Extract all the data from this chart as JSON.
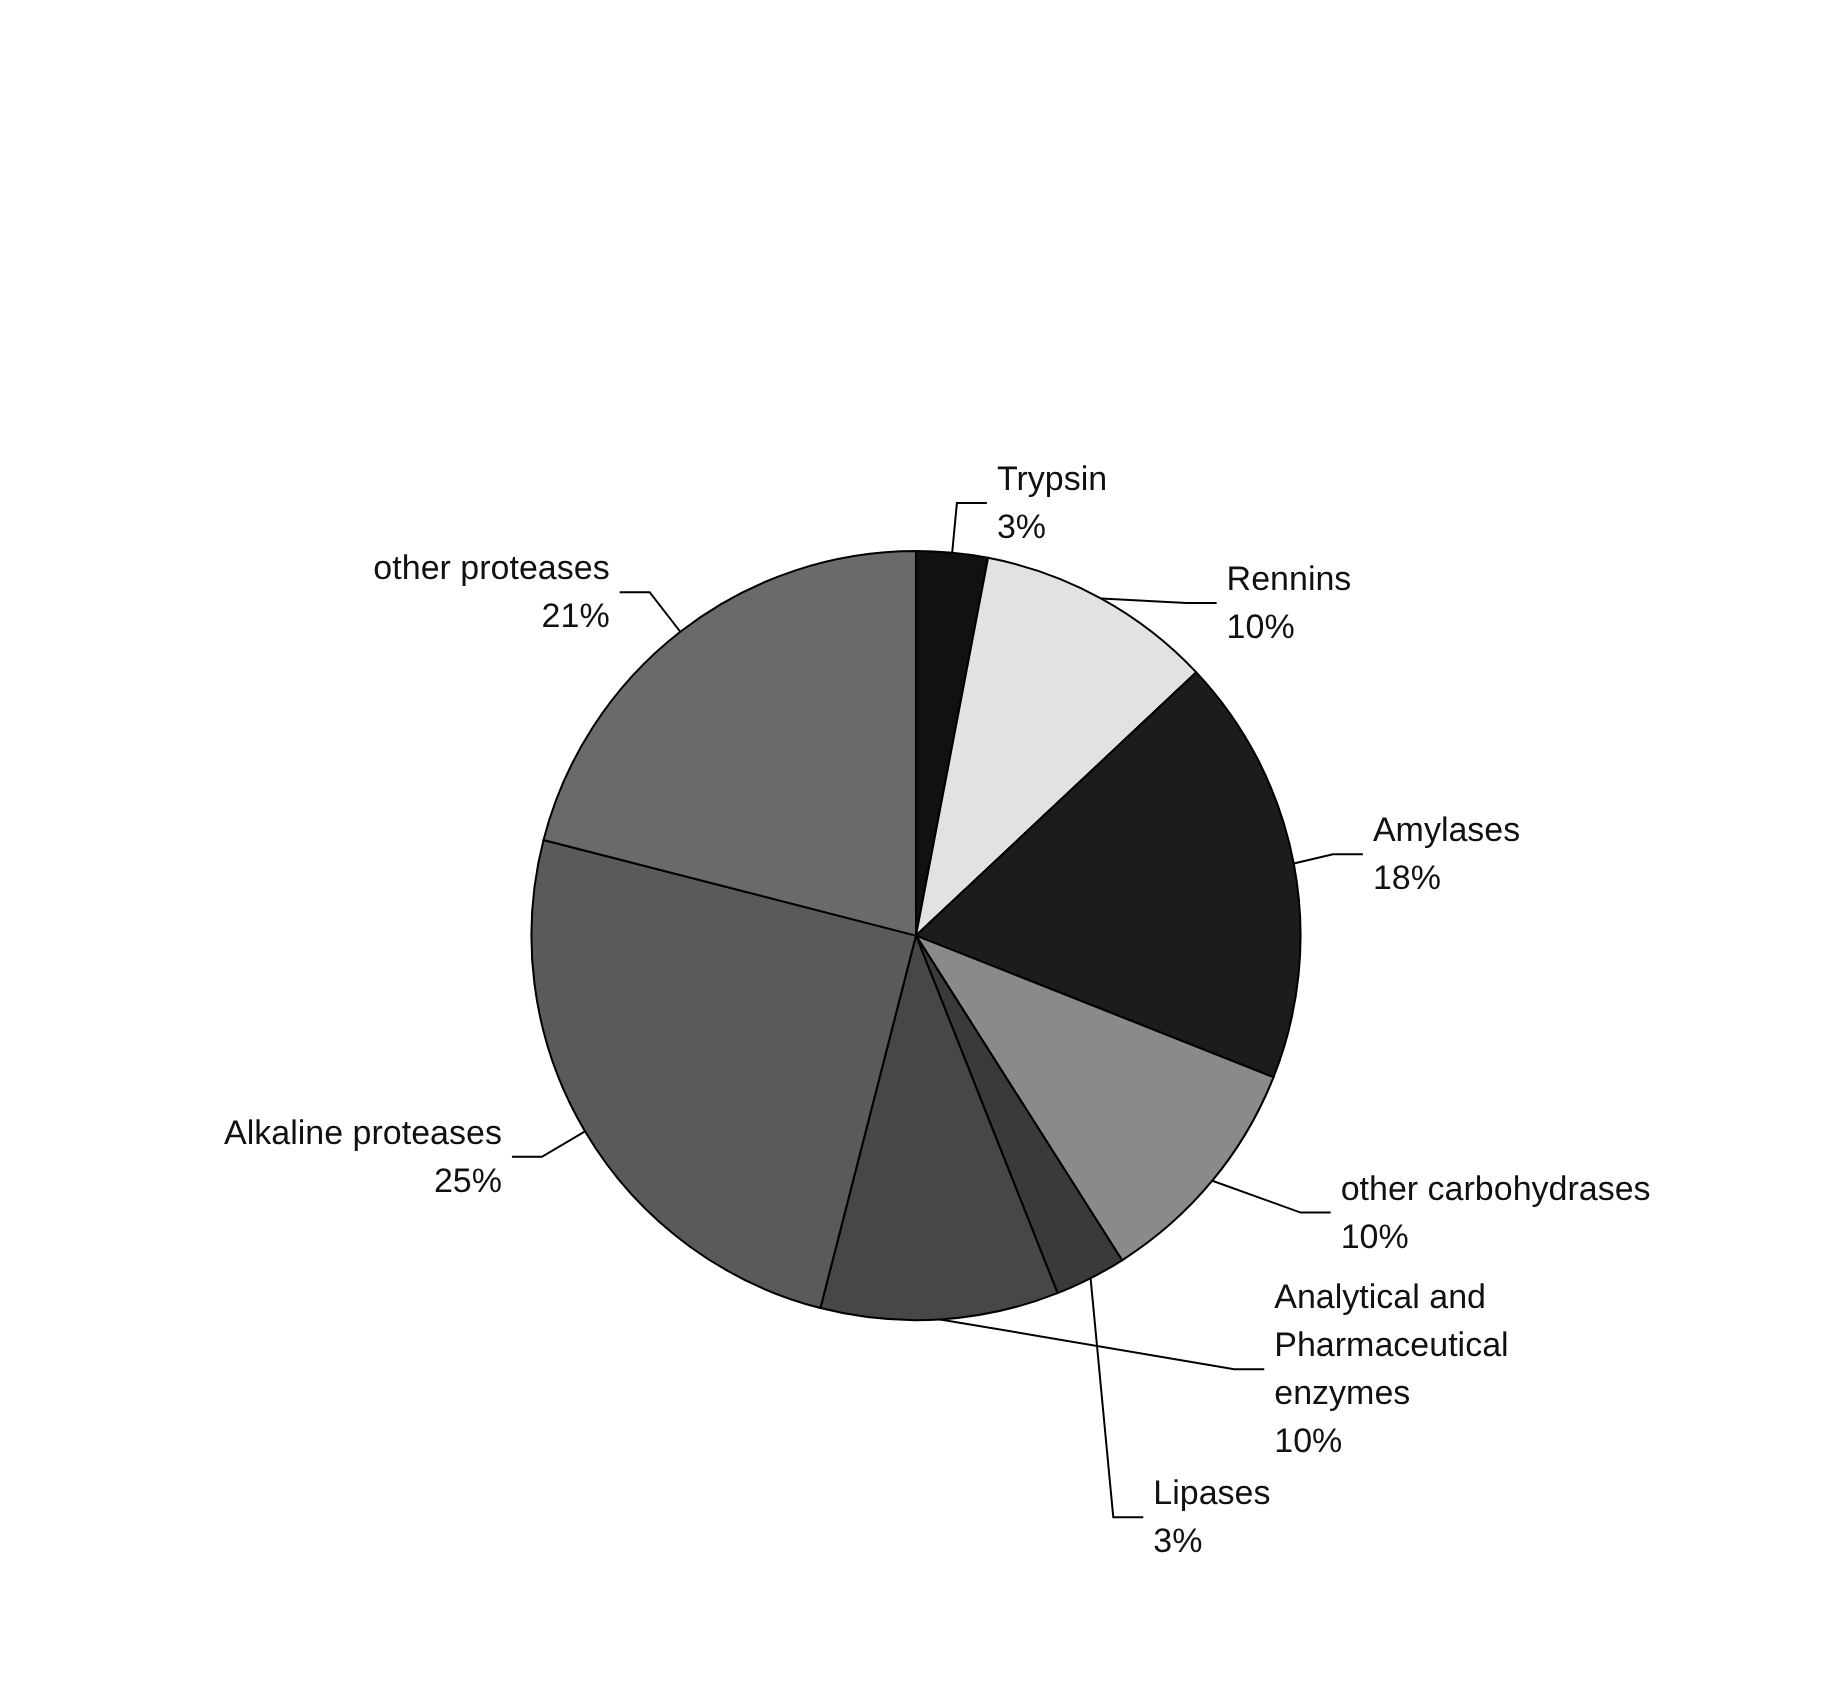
{
  "chart_data": {
    "type": "pie",
    "categories": [
      "Trypsin",
      "Rennins",
      "Amylases",
      "other carbohydrases",
      "Lipases",
      "Analytical and Pharmaceutical enzymes",
      "Alkaline proteases",
      "other proteases"
    ],
    "values": [
      3,
      10,
      18,
      10,
      3,
      10,
      25,
      21
    ],
    "value_labels": [
      "3%",
      "10%",
      "18%",
      "10%",
      "3%",
      "10%",
      "25%",
      "21%"
    ],
    "colors": [
      "#111111",
      "#e2e2e2",
      "#1c1c1c",
      "#8a8a8a",
      "#3a3a3a",
      "#474747",
      "#5a5a5a",
      "#6a6a6a"
    ],
    "legend": false
  }
}
